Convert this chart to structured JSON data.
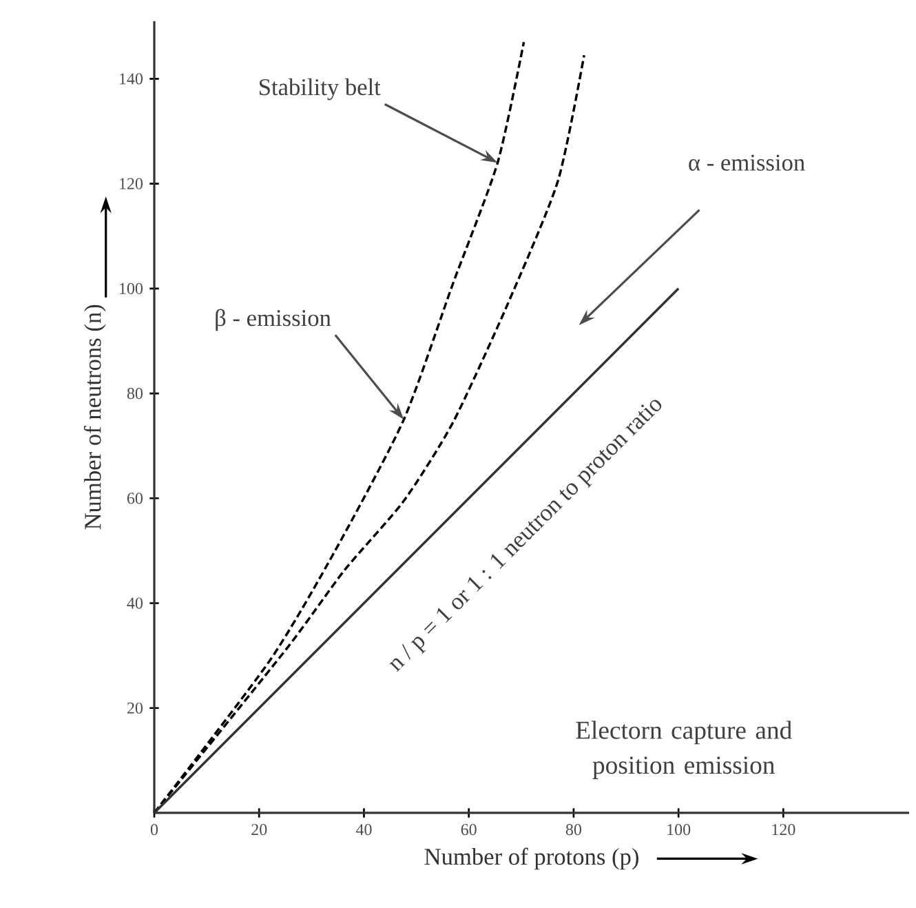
{
  "chart_data": {
    "type": "line",
    "xlabel": "Number of protons (p)",
    "ylabel": "Number of neutrons (n)",
    "xlim": [
      0,
      144
    ],
    "ylim": [
      0,
      151
    ],
    "xticks": [
      0,
      20,
      40,
      60,
      80,
      100,
      120
    ],
    "yticks": [
      20,
      40,
      60,
      80,
      100,
      120,
      140
    ],
    "series": [
      {
        "x": [
          0,
          22,
          34.5,
          47.6,
          57,
          65.5,
          70.5
        ],
        "values": [
          0,
          29,
          50,
          75,
          101,
          124,
          147
        ],
        "color": "#000000",
        "line_style": "dashed"
      },
      {
        "x": [
          0,
          25,
          36.3,
          47.6,
          57,
          67.4,
          77,
          82
        ],
        "values": [
          0,
          31,
          46.3,
          59.5,
          74.5,
          97,
          120.5,
          144.5
        ],
        "color": "#000000",
        "line_style": "dashed"
      },
      {
        "x": [
          0,
          100
        ],
        "values": [
          0,
          100
        ],
        "color": "#333333",
        "line_style": "solid"
      }
    ],
    "annotations": [
      {
        "text": "Stability belt",
        "x": 65.5,
        "y": 124
      },
      "α - emission",
      {
        "text": "β - emission",
        "x": 47.6,
        "y": 75
      },
      "n / p = 1 or 1 : 1 neutron to proton ratio",
      "Electorn capture and position emission"
    ]
  }
}
